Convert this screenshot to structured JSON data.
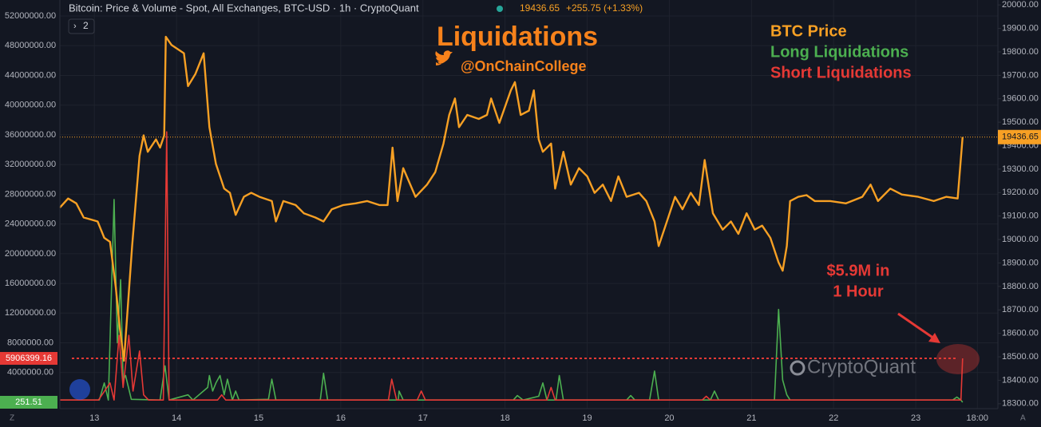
{
  "chart_data": {
    "type": "line",
    "header": "Bitcoin: Price & Volume - Spot, All Exchanges, BTC-USD · 1h · CryptoQuant",
    "price_change": "+255.75 (+1.33%)",
    "indicator_count": "2",
    "title": "Liquidations",
    "subtitle": "@OnChainCollege",
    "annotation": [
      "$5.9M in",
      "1 Hour"
    ],
    "watermark": "CryptoQuant",
    "corner_left": "Z",
    "corner_right": "A",
    "xlim": [
      12.58,
      24.0
    ],
    "xticks": [
      13,
      14,
      15,
      16,
      17,
      18,
      19,
      20,
      21,
      22,
      23,
      {
        "value": 23.75,
        "label": "18:00"
      }
    ],
    "ylim": [
      -860000,
      54150000
    ],
    "yticks": [
      {
        "value": 4000000,
        "label": "4000000.00"
      },
      {
        "value": 8000000,
        "label": "8000000.00"
      },
      {
        "value": 12000000,
        "label": "12000000.00"
      },
      {
        "value": 16000000,
        "label": "16000000.00"
      },
      {
        "value": 20000000,
        "label": "20000000.00"
      },
      {
        "value": 24000000,
        "label": "24000000.00"
      },
      {
        "value": 28000000,
        "label": "28000000.00"
      },
      {
        "value": 32000000,
        "label": "32000000.00"
      },
      {
        "value": 36000000,
        "label": "36000000.00"
      },
      {
        "value": 40000000,
        "label": "40000000.00"
      },
      {
        "value": 44000000,
        "label": "44000000.00"
      },
      {
        "value": 48000000,
        "label": "48000000.00"
      },
      {
        "value": 52000000,
        "label": "52000000.00"
      }
    ],
    "y2lim": [
      18279,
      20021
    ],
    "y2ticks": [
      {
        "value": 18300,
        "label": "18300.00"
      },
      {
        "value": 18400,
        "label": "18400.00"
      },
      {
        "value": 18500,
        "label": "18500.00"
      },
      {
        "value": 18600,
        "label": "18600.00"
      },
      {
        "value": 18700,
        "label": "18700.00"
      },
      {
        "value": 18800,
        "label": "18800.00"
      },
      {
        "value": 18900,
        "label": "18900.00"
      },
      {
        "value": 19000,
        "label": "19000.00"
      },
      {
        "value": 19100,
        "label": "19100.00"
      },
      {
        "value": 19200,
        "label": "19200.00"
      },
      {
        "value": 19300,
        "label": "19300.00"
      },
      {
        "value": 19400,
        "label": "19400.00"
      },
      {
        "value": 19500,
        "label": "19500.00"
      },
      {
        "value": 19600,
        "label": "19600.00"
      },
      {
        "value": 19700,
        "label": "19700.00"
      },
      {
        "value": 19800,
        "label": "19800.00"
      },
      {
        "value": 19900,
        "label": "19900.00"
      },
      {
        "value": 20000,
        "label": "20000.00"
      }
    ],
    "grid": true,
    "series": [
      {
        "name": "BTC Price",
        "color": "#f7a024",
        "axis": "y2",
        "x": [
          12.58,
          12.68,
          12.78,
          12.87,
          12.97,
          13.04,
          13.12,
          13.19,
          13.26,
          13.31,
          13.36,
          13.46,
          13.55,
          13.6,
          13.65,
          13.75,
          13.8,
          13.85,
          13.87,
          13.94,
          14.09,
          14.14,
          14.23,
          14.33,
          14.4,
          14.48,
          14.58,
          14.65,
          14.72,
          14.82,
          14.91,
          15.01,
          15.16,
          15.21,
          15.3,
          15.45,
          15.55,
          15.69,
          15.79,
          15.89,
          16.03,
          16.18,
          16.32,
          16.47,
          16.57,
          16.63,
          16.69,
          16.76,
          16.91,
          17.05,
          17.15,
          17.25,
          17.32,
          17.39,
          17.44,
          17.54,
          17.68,
          17.78,
          17.83,
          17.93,
          18.07,
          18.12,
          18.19,
          18.29,
          18.35,
          18.41,
          18.46,
          18.56,
          18.61,
          18.71,
          18.8,
          18.9,
          19.0,
          19.09,
          19.19,
          19.29,
          19.38,
          19.48,
          19.63,
          19.72,
          19.82,
          19.87,
          19.97,
          20.07,
          20.16,
          20.26,
          20.36,
          20.43,
          20.53,
          20.65,
          20.75,
          20.84,
          20.94,
          21.04,
          21.13,
          21.23,
          21.33,
          21.38,
          21.43,
          21.47,
          21.57,
          21.67,
          21.77,
          21.96,
          22.15,
          22.35,
          22.45,
          22.54,
          22.69,
          22.83,
          23.03,
          23.22,
          23.37,
          23.51,
          23.57
        ],
        "values": [
          19136,
          19175,
          19154,
          19094,
          19084,
          19077,
          19007,
          18990,
          18797,
          18622,
          18483,
          18972,
          19357,
          19444,
          19374,
          19427,
          19392,
          19444,
          19864,
          19829,
          19794,
          19654,
          19706,
          19794,
          19479,
          19322,
          19217,
          19199,
          19105,
          19182,
          19199,
          19182,
          19164,
          19077,
          19164,
          19147,
          19112,
          19094,
          19077,
          19129,
          19147,
          19154,
          19164,
          19147,
          19147,
          19392,
          19164,
          19304,
          19182,
          19234,
          19287,
          19409,
          19531,
          19601,
          19479,
          19531,
          19514,
          19531,
          19601,
          19497,
          19636,
          19671,
          19531,
          19549,
          19636,
          19427,
          19374,
          19409,
          19217,
          19374,
          19234,
          19304,
          19269,
          19199,
          19234,
          19164,
          19269,
          19182,
          19199,
          19164,
          19077,
          18972,
          19077,
          19182,
          19129,
          19199,
          19147,
          19339,
          19112,
          19042,
          19077,
          19024,
          19112,
          19042,
          19059,
          19007,
          18902,
          18867,
          18972,
          19164,
          19182,
          19189,
          19164,
          19164,
          19154,
          19182,
          19234,
          19164,
          19217,
          19192,
          19182,
          19164,
          19182,
          19175,
          19436.65
        ]
      },
      {
        "name": "Long Liquidations",
        "color": "#4caf50",
        "x": [
          12.58,
          13.06,
          13.12,
          13.17,
          13.24,
          13.28,
          13.32,
          13.35,
          13.38,
          13.45,
          13.8,
          13.86,
          13.91,
          14.14,
          14.2,
          14.38,
          14.4,
          14.44,
          14.48,
          14.53,
          14.58,
          14.62,
          14.68,
          14.72,
          14.76,
          15.12,
          15.16,
          15.21,
          15.75,
          15.79,
          15.84,
          16.7,
          16.71,
          16.76,
          18.1,
          18.15,
          18.22,
          18.41,
          18.46,
          18.51,
          18.62,
          18.66,
          18.71,
          19.48,
          19.53,
          19.58,
          19.76,
          19.82,
          19.87,
          20.5,
          20.55,
          20.6,
          21.28,
          21.33,
          21.38,
          21.43,
          21.47,
          23.45,
          23.5,
          23.55,
          23.57
        ],
        "values": [
          300000,
          300000,
          2600000,
          300000,
          27300000,
          8000000,
          16500000,
          3000000,
          3600000,
          400000,
          300000,
          4900000,
          300000,
          1000000,
          300000,
          2000000,
          3600000,
          1500000,
          2600000,
          3600000,
          1000000,
          3100000,
          300000,
          1500000,
          300000,
          400000,
          3100000,
          300000,
          300000,
          3900000,
          300000,
          300000,
          1500000,
          300000,
          300000,
          900000,
          300000,
          800000,
          2600000,
          300000,
          300000,
          3600000,
          300000,
          300000,
          900000,
          300000,
          300000,
          4200000,
          300000,
          300000,
          1500000,
          300000,
          300000,
          12500000,
          3000000,
          1000000,
          300000,
          300000,
          700000,
          300000,
          251.51
        ]
      },
      {
        "name": "Short Liquidations",
        "color": "#e53935",
        "x": [
          12.58,
          13.05,
          13.19,
          13.24,
          13.3,
          13.35,
          13.42,
          13.47,
          13.55,
          13.6,
          13.66,
          13.84,
          13.88,
          13.91,
          14.5,
          14.55,
          14.6,
          16.58,
          16.62,
          16.68,
          16.93,
          16.98,
          17.03,
          18.51,
          18.56,
          18.61,
          20.4,
          20.45,
          20.5,
          23.5,
          23.55,
          23.57
        ],
        "values": [
          300000,
          300000,
          2600000,
          300000,
          9000000,
          2000000,
          9000000,
          1500000,
          6900000,
          1000000,
          300000,
          300000,
          36400000,
          300000,
          300000,
          1000000,
          300000,
          300000,
          3100000,
          300000,
          300000,
          1500000,
          300000,
          300000,
          2000000,
          300000,
          300000,
          800000,
          300000,
          300000,
          300000,
          5906399.16
        ]
      }
    ]
  }
}
